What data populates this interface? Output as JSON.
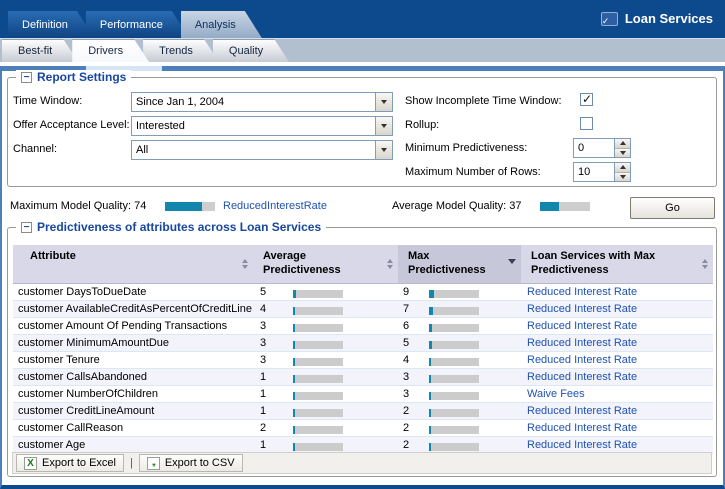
{
  "app": {
    "title": "Loan Services"
  },
  "main_tabs": [
    {
      "label": "Definition",
      "active": false
    },
    {
      "label": "Performance",
      "active": false
    },
    {
      "label": "Analysis",
      "active": true
    }
  ],
  "sub_tabs": [
    {
      "label": "Best-fit",
      "active": false
    },
    {
      "label": "Drivers",
      "active": true
    },
    {
      "label": "Trends",
      "active": false
    },
    {
      "label": "Quality",
      "active": false
    }
  ],
  "report_settings": {
    "title": "Report Settings",
    "time_window": {
      "label": "Time Window:",
      "value": "Since Jan 1, 2004"
    },
    "offer_acceptance": {
      "label": "Offer Acceptance Level:",
      "value": "Interested"
    },
    "channel": {
      "label": "Channel:",
      "value": "All"
    },
    "show_incomplete": {
      "label": "Show Incomplete Time Window:",
      "checked": true
    },
    "rollup": {
      "label": "Rollup:",
      "checked": false
    },
    "min_predictiveness": {
      "label": "Minimum Predictiveness:",
      "value": "0"
    },
    "max_rows": {
      "label": "Maximum Number of Rows:",
      "value": "10"
    }
  },
  "quality_row": {
    "max_label": "Maximum Model Quality:",
    "max_value": 74,
    "max_link": "ReducedInterestRate",
    "avg_label": "Average Model Quality:",
    "avg_value": 37,
    "go_label": "Go"
  },
  "predictiveness": {
    "title": "Predictiveness of attributes across Loan Services",
    "columns": [
      {
        "label": "Attribute",
        "sort": "both"
      },
      {
        "label": "Average Predictiveness",
        "sort": "both"
      },
      {
        "label": "Max Predictiveness",
        "sort": "desc"
      },
      {
        "label": "Loan Services with Max Predictiveness",
        "sort": "both"
      }
    ],
    "rows": [
      {
        "attribute": "customer DaysToDueDate",
        "avg": 5,
        "max": 9,
        "service": "Reduced Interest Rate"
      },
      {
        "attribute": "customer AvailableCreditAsPercentOfCreditLine",
        "avg": 4,
        "max": 7,
        "service": "Reduced Interest Rate"
      },
      {
        "attribute": "customer Amount Of Pending Transactions",
        "avg": 3,
        "max": 6,
        "service": "Reduced Interest Rate"
      },
      {
        "attribute": "customer MinimumAmountDue",
        "avg": 3,
        "max": 5,
        "service": "Reduced Interest Rate"
      },
      {
        "attribute": "customer Tenure",
        "avg": 3,
        "max": 4,
        "service": "Reduced Interest Rate"
      },
      {
        "attribute": "customer CallsAbandoned",
        "avg": 1,
        "max": 3,
        "service": "Reduced Interest Rate"
      },
      {
        "attribute": "customer NumberOfChildren",
        "avg": 1,
        "max": 3,
        "service": "Waive Fees"
      },
      {
        "attribute": "customer CreditLineAmount",
        "avg": 1,
        "max": 2,
        "service": "Reduced Interest Rate"
      },
      {
        "attribute": "customer CallReason",
        "avg": 2,
        "max": 2,
        "service": "Reduced Interest Rate"
      },
      {
        "attribute": "customer Age",
        "avg": 1,
        "max": 2,
        "service": "Reduced Interest Rate"
      }
    ]
  },
  "footer": {
    "export_excel": "Export to Excel",
    "separator": "|",
    "export_csv": "Export to CSV",
    "excel_icon_glyph": "X",
    "csv_icon_glyph": ",,"
  },
  "colors": {
    "banner_navy": "#0c4a8d",
    "bar_teal": "#1287ad",
    "bar_track": "#cecece",
    "link_blue": "#2052b2",
    "table_header_bg": "#d8d8e8",
    "table_header_sorted_bg": "#c7c7da",
    "row_alt_bg": "#f2f3fb",
    "subtab_bar_bg": "#b2bfce"
  }
}
